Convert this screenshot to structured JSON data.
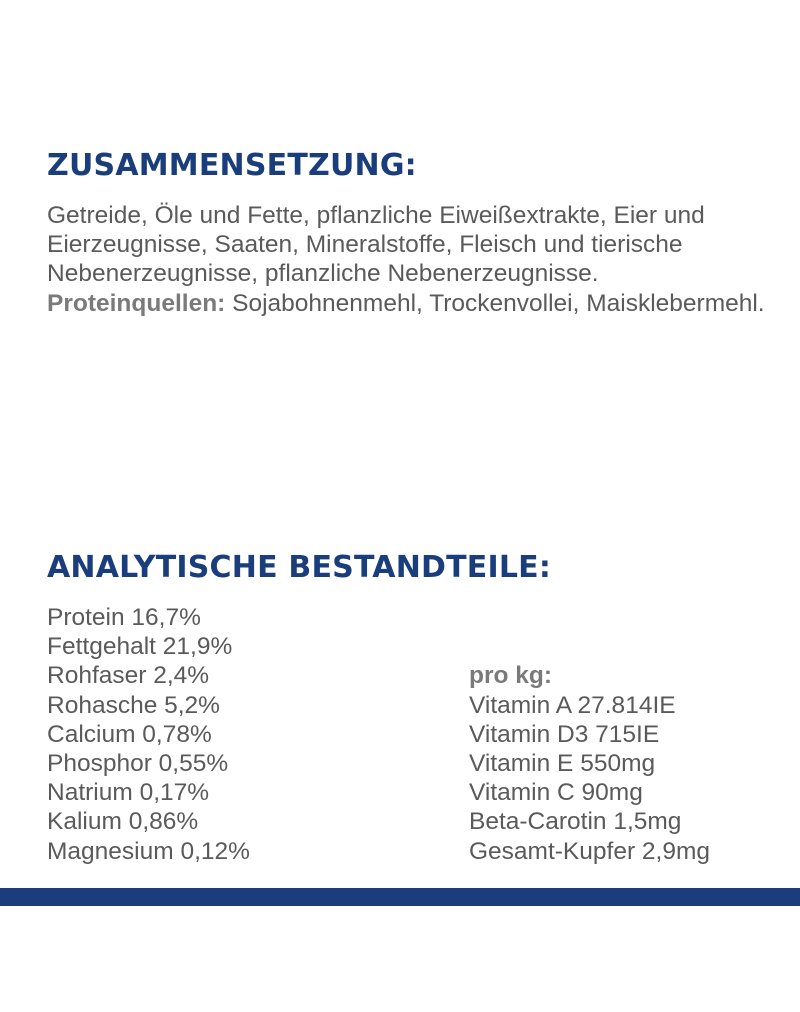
{
  "composition": {
    "title": "ZUSAMMENSETZUNG:",
    "ingredients": "Getreide, Öle und Fette, pflanzliche Eiweißextrakte, Eier und Eierzeugnisse, Saaten, Mineralstoffe, Fleisch und tierische Nebenerzeugnisse, pflanzliche Nebenerzeugnisse.",
    "protein_label": "Proteinquellen:",
    "protein_sources": "Sojabohnenmehl, Trockenvollei, Maisklebermehl."
  },
  "analytic": {
    "title": "ANALYTISCHE BESTANDTEILE:",
    "left_items": [
      "Protein 16,7%",
      "Fettgehalt 21,9%",
      "Rohfaser 2,4%",
      "Rohasche 5,2%",
      "Calcium 0,78%",
      "Phosphor 0,55%",
      "Natrium 0,17%",
      "Kalium 0,86%",
      "Magnesium 0,12%"
    ],
    "right_label": "pro kg:",
    "right_items": [
      "Vitamin A 27.814IE",
      "Vitamin D3 715IE",
      "Vitamin E 550mg",
      "Vitamin C 90mg",
      "Beta-Carotin 1,5mg",
      "Gesamt-Kupfer 2,9mg"
    ]
  },
  "colors": {
    "heading": "#1a3d7c",
    "text": "#5a5a5a",
    "label": "#7a7a7a",
    "bar": "#1a3d7c"
  }
}
